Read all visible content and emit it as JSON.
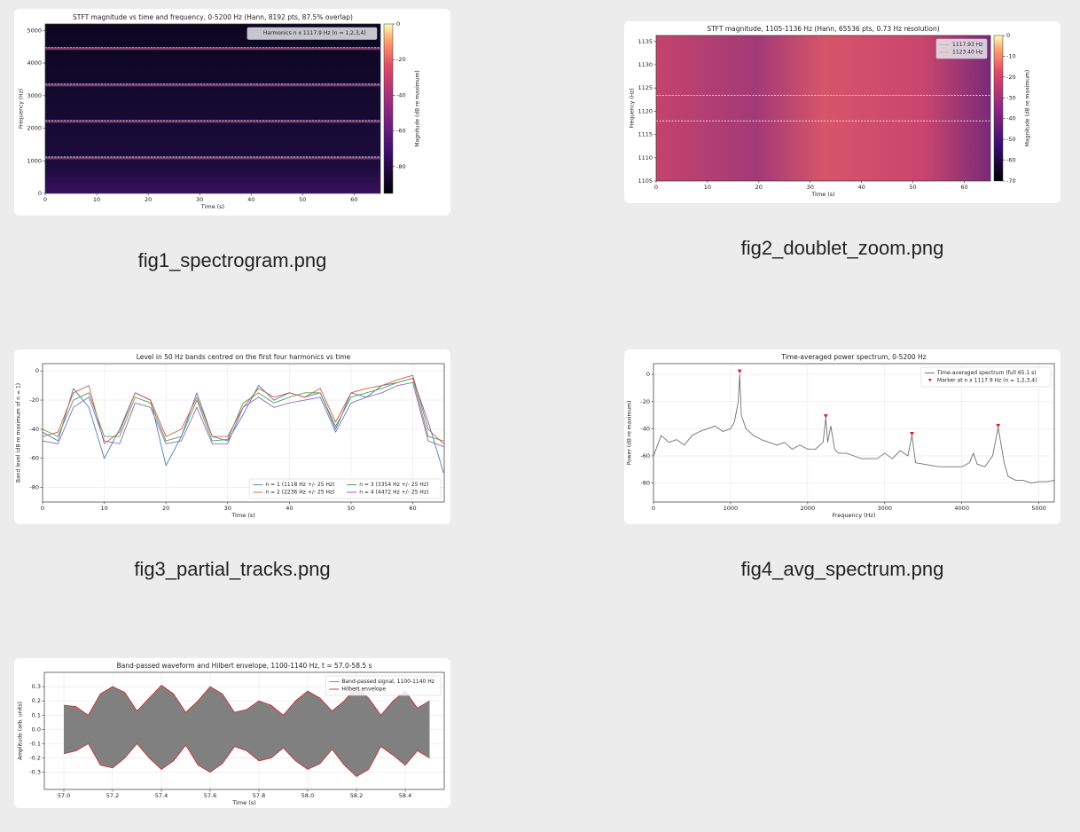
{
  "files": [
    {
      "name": "fig1_spectrogram.png",
      "figure": {
        "type": "spectrogram",
        "title": "STFT magnitude vs time and frequency, 0-5200 Hz (Hann, 8192 pts, 87.5% overlap)",
        "xlabel": "Time (s)",
        "ylabel": "Frequency (Hz)",
        "xlim": [
          0,
          65.1
        ],
        "xticks": [
          0,
          10,
          20,
          30,
          40,
          50,
          60
        ],
        "ylim": [
          0,
          5200
        ],
        "yticks": [
          0,
          1000,
          2000,
          3000,
          4000,
          5000
        ],
        "legend": "upper right",
        "colorbar": {
          "label": "Magnitude (dB re maximum)",
          "lim": [
            -95,
            0
          ],
          "ticks": [
            0,
            -20,
            -40,
            -60,
            -80
          ]
        },
        "lines": [
          {
            "name": "Harmonics n x 1117.9 Hz (n = 1,2,3,4)",
            "color": "#a8e4e4",
            "values": [
              1117.9,
              2235.8,
              3353.7,
              4471.6
            ]
          }
        ]
      }
    },
    {
      "name": "fig2_doublet_zoom.png",
      "figure": {
        "type": "spectrogram",
        "title": "STFT magnitude, 1105-1136 Hz (Hann, 65536 pts, 0.73 Hz resolution)",
        "xlabel": "Time (s)",
        "ylabel": "Frequency (Hz)",
        "xlim": [
          0,
          65.1
        ],
        "xticks": [
          0,
          10,
          20,
          30,
          40,
          50,
          60
        ],
        "ylim": [
          1105,
          1136.3
        ],
        "yticks": [
          1105,
          1110,
          1115,
          1120,
          1125,
          1130,
          1135
        ],
        "legend": "upper right",
        "colorbar": {
          "label": "Magnitude (dB re maximum)",
          "lim": [
            -70,
            0
          ],
          "ticks": [
            0,
            -10,
            -20,
            -30,
            -40,
            -50,
            -60,
            -70
          ]
        },
        "lines": [
          {
            "name": "1117.93 Hz",
            "color": "#ffffff",
            "values": [
              1117.93
            ]
          },
          {
            "name": "1123.40 Hz",
            "color": "#ffffff",
            "values": [
              1123.4
            ]
          }
        ]
      }
    },
    {
      "name": "fig3_partial_tracks.png",
      "figure": {
        "type": "line",
        "title": "Level in 50 Hz bands centred on the first four harmonics vs time",
        "xlabel": "Time (s)",
        "ylabel": "Band level (dB re maximum of n = 1)",
        "xlim": [
          0,
          65.1
        ],
        "xticks": [
          0,
          10,
          20,
          30,
          40,
          50,
          60
        ],
        "ylim": [
          -90,
          5
        ],
        "yticks": [
          0,
          -20,
          -40,
          -60,
          -80
        ],
        "grid": true,
        "legend": "lower right",
        "legend_columns": 2,
        "x": [
          0,
          2.5,
          5,
          7.5,
          10,
          12.5,
          15,
          17.5,
          20,
          22.5,
          25,
          27.5,
          30,
          32.5,
          35,
          37.5,
          40,
          42.5,
          45,
          47.5,
          50,
          52.5,
          55,
          57.5,
          60,
          62.5,
          65
        ],
        "series": [
          {
            "name": "n = 1  (1118 Hz +/- 25 Hz)",
            "color": "#4a7fb5",
            "values": [
              -42,
              -48,
              -12,
              -25,
              -60,
              -40,
              -15,
              -20,
              -65,
              -45,
              -15,
              -45,
              -48,
              -30,
              -10,
              -20,
              -15,
              -18,
              -15,
              -40,
              -15,
              -18,
              -10,
              -8,
              -5,
              -35,
              -70
            ]
          },
          {
            "name": "n = 2  (2236 Hz +/- 25 Hz)",
            "color": "#d9534f",
            "values": [
              -45,
              -42,
              -15,
              -10,
              -50,
              -42,
              -15,
              -20,
              -45,
              -40,
              -18,
              -45,
              -45,
              -25,
              -12,
              -18,
              -15,
              -18,
              -12,
              -35,
              -15,
              -12,
              -10,
              -6,
              -3,
              -40,
              -50
            ]
          },
          {
            "name": "n = 3  (3354 Hz +/- 25 Hz)",
            "color": "#4fa34f",
            "values": [
              -40,
              -45,
              -20,
              -15,
              -45,
              -45,
              -18,
              -22,
              -48,
              -45,
              -20,
              -48,
              -47,
              -22,
              -15,
              -22,
              -18,
              -15,
              -15,
              -38,
              -18,
              -15,
              -12,
              -8,
              -5,
              -45,
              -48
            ]
          },
          {
            "name": "n = 4  (4472 Hz +/- 25 Hz)",
            "color": "#9467bd",
            "values": [
              -48,
              -50,
              -25,
              -18,
              -48,
              -50,
              -22,
              -25,
              -50,
              -48,
              -25,
              -50,
              -50,
              -25,
              -18,
              -25,
              -22,
              -20,
              -18,
              -42,
              -22,
              -18,
              -15,
              -10,
              -8,
              -48,
              -52
            ]
          }
        ]
      }
    },
    {
      "name": "fig4_avg_spectrum.png",
      "figure": {
        "type": "line",
        "title": "Time-averaged power spectrum, 0-5200 Hz",
        "xlabel": "Frequency (Hz)",
        "ylabel": "Power (dB re maximum)",
        "xlim": [
          0,
          5200
        ],
        "xticks": [
          0,
          1000,
          2000,
          3000,
          4000,
          5000
        ],
        "ylim": [
          -94,
          8
        ],
        "yticks": [
          0,
          -20,
          -40,
          -60,
          -80
        ],
        "grid": true,
        "legend": "upper right",
        "x": [
          0,
          100,
          200,
          300,
          400,
          500,
          600,
          700,
          800,
          900,
          1000,
          1050,
          1100,
          1117.9,
          1140,
          1200,
          1300,
          1400,
          1500,
          1600,
          1700,
          1800,
          1900,
          2000,
          2100,
          2200,
          2235.8,
          2260,
          2300,
          2350,
          2400,
          2500,
          2600,
          2700,
          2800,
          2900,
          3000,
          3100,
          3200,
          3300,
          3353.7,
          3400,
          3500,
          3600,
          3700,
          3800,
          3900,
          4000,
          4100,
          4150,
          4200,
          4300,
          4400,
          4471.6,
          4550,
          4600,
          4700,
          4800,
          4900,
          5000,
          5100,
          5200
        ],
        "series": [
          {
            "name": "Time-averaged spectrum (full 65.1 s)",
            "color": "#707070",
            "values": [
              -60,
              -45,
              -50,
              -48,
              -52,
              -45,
              -42,
              -40,
              -38,
              -42,
              -40,
              -35,
              -20,
              0,
              -30,
              -40,
              -45,
              -48,
              -50,
              -52,
              -50,
              -55,
              -52,
              -55,
              -55,
              -50,
              -32,
              -50,
              -38,
              -55,
              -58,
              -58,
              -60,
              -62,
              -62,
              -62,
              -58,
              -62,
              -56,
              -60,
              -45,
              -65,
              -66,
              -67,
              -68,
              -68,
              -68,
              -68,
              -65,
              -58,
              -66,
              -68,
              -60,
              -39,
              -65,
              -75,
              -78,
              -78,
              -80,
              -79,
              -79,
              -78
            ]
          }
        ],
        "markers": {
          "name": "Marker at n x 1117.9 Hz (n = 1,2,3,4)",
          "color": "#d62728",
          "x": [
            1117.9,
            2235.8,
            3353.7,
            4471.6
          ],
          "values": [
            2,
            -31,
            -44,
            -38
          ]
        }
      }
    },
    {
      "figure": {
        "type": "envelope",
        "title": "Band-passed waveform and Hilbert envelope, 1100-1140 Hz, t = 57.0-58.5 s",
        "xlabel": "Time (s)",
        "ylabel": "Amplitude (arb. units)",
        "xlim": [
          56.92,
          58.56
        ],
        "xticks": [
          {
            "value": 57,
            "label": "57.0"
          },
          57.2,
          57.4,
          57.6,
          57.8,
          {
            "value": 58,
            "label": "58.0"
          },
          58.2,
          58.4
        ],
        "ylim": [
          -0.42,
          0.4
        ],
        "yticks": [
          0.3,
          0.2,
          0.1,
          {
            "value": 0,
            "label": "0.0"
          },
          -0.1,
          -0.2,
          -0.3
        ],
        "grid": true,
        "legend": "upper right",
        "x": [
          57.0,
          57.05,
          57.1,
          57.15,
          57.2,
          57.25,
          57.3,
          57.35,
          57.4,
          57.45,
          57.5,
          57.55,
          57.6,
          57.65,
          57.7,
          57.75,
          57.8,
          57.85,
          57.9,
          57.95,
          58.0,
          58.05,
          58.1,
          58.15,
          58.2,
          58.25,
          58.3,
          58.35,
          58.4,
          58.45,
          58.5
        ],
        "signal": {
          "name": "Band-passed signal, 1100-1140 Hz",
          "color": "#808080"
        },
        "envelope": {
          "name": "Hilbert envelope",
          "color": "#d62728",
          "upper": [
            0.17,
            0.16,
            0.1,
            0.25,
            0.3,
            0.26,
            0.13,
            0.22,
            0.31,
            0.25,
            0.12,
            0.2,
            0.3,
            0.25,
            0.12,
            0.14,
            0.2,
            0.17,
            0.1,
            0.2,
            0.27,
            0.22,
            0.13,
            0.2,
            0.3,
            0.22,
            0.1,
            0.2,
            0.27,
            0.15,
            0.2
          ],
          "lower": [
            -0.17,
            -0.15,
            -0.1,
            -0.25,
            -0.27,
            -0.2,
            -0.1,
            -0.2,
            -0.28,
            -0.22,
            -0.11,
            -0.25,
            -0.3,
            -0.24,
            -0.12,
            -0.15,
            -0.22,
            -0.2,
            -0.13,
            -0.22,
            -0.28,
            -0.24,
            -0.14,
            -0.25,
            -0.33,
            -0.28,
            -0.12,
            -0.18,
            -0.25,
            -0.15,
            -0.2
          ]
        }
      }
    }
  ]
}
